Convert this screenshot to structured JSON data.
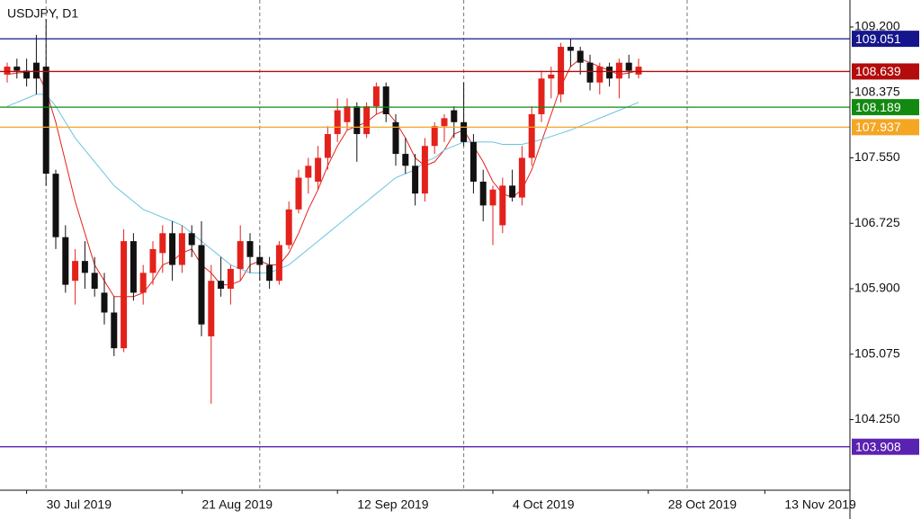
{
  "chart_data": {
    "type": "candlestick",
    "title": "USDJPY, D1",
    "categories": [
      null,
      null,
      "30 Jul 2019",
      null,
      null,
      null,
      null,
      null,
      null,
      null,
      null,
      null,
      null,
      null,
      null,
      null,
      null,
      null,
      "21 Aug 2019",
      null,
      null,
      null,
      null,
      null,
      null,
      null,
      null,
      null,
      null,
      null,
      null,
      null,
      null,
      null,
      "12 Sep 2019",
      null,
      null,
      null,
      null,
      null,
      null,
      null,
      null,
      null,
      null,
      null,
      null,
      null,
      null,
      null,
      "4 Oct 2019",
      null,
      null,
      null,
      null,
      null,
      null,
      null,
      null,
      null,
      null,
      null,
      null,
      null,
      null,
      null,
      "28 Oct 2019",
      null,
      null,
      null,
      null,
      null,
      null,
      null,
      null,
      null,
      null,
      null,
      "13 Nov 2019"
    ],
    "open": [
      108.6,
      108.7,
      108.65,
      108.75,
      108.7,
      107.35,
      106.55,
      106.0,
      106.25,
      106.1,
      105.85,
      105.6,
      105.15,
      106.5,
      105.85,
      106.1,
      106.35,
      106.6,
      106.2,
      106.6,
      106.45,
      105.3,
      106.0,
      105.9,
      106.15,
      106.5,
      106.3,
      106.2,
      106.0,
      106.45,
      106.9,
      107.3,
      107.25,
      107.55,
      107.85,
      108.0,
      108.2,
      107.85,
      108.2,
      108.45,
      108.0,
      107.6,
      107.45,
      107.1,
      107.7,
      107.95,
      108.15,
      108.0,
      107.75,
      107.25,
      106.95,
      106.7,
      107.2,
      107.05,
      107.55,
      108.1,
      108.55,
      108.35,
      108.95,
      108.9,
      108.75,
      108.5,
      108.7,
      108.55,
      108.75,
      108.6,
      null,
      null,
      null,
      null,
      null,
      null,
      null,
      null,
      null,
      null,
      null,
      null,
      null
    ],
    "high": [
      108.75,
      108.8,
      108.8,
      109.1,
      109.3,
      107.4,
      106.7,
      106.4,
      106.5,
      106.3,
      106.1,
      105.8,
      106.65,
      106.6,
      106.2,
      106.5,
      106.7,
      106.75,
      106.7,
      106.7,
      106.75,
      106.2,
      106.3,
      106.2,
      106.7,
      106.6,
      106.45,
      106.3,
      106.5,
      107.0,
      107.4,
      107.55,
      107.7,
      107.95,
      108.3,
      108.3,
      108.25,
      108.25,
      108.5,
      108.5,
      108.1,
      107.8,
      107.6,
      107.8,
      108.0,
      108.1,
      108.2,
      108.5,
      107.85,
      107.4,
      107.2,
      107.3,
      107.4,
      107.7,
      108.2,
      108.65,
      108.7,
      109.0,
      109.05,
      108.95,
      108.85,
      108.75,
      108.75,
      108.8,
      108.85,
      108.8,
      null,
      null,
      null,
      null,
      null,
      null,
      null,
      null,
      null,
      null,
      null,
      null,
      null
    ],
    "low": [
      108.5,
      108.55,
      108.45,
      108.35,
      107.2,
      106.4,
      105.85,
      105.7,
      105.9,
      105.8,
      105.45,
      105.05,
      105.1,
      105.75,
      105.7,
      105.95,
      106.1,
      106.0,
      106.1,
      106.3,
      105.3,
      104.45,
      105.8,
      105.7,
      106.0,
      106.1,
      106.0,
      105.9,
      105.95,
      106.4,
      106.85,
      107.1,
      107.15,
      107.4,
      107.75,
      107.9,
      107.5,
      107.8,
      108.1,
      108.0,
      107.45,
      107.35,
      106.95,
      107.0,
      107.6,
      107.75,
      107.8,
      107.7,
      107.1,
      106.75,
      106.45,
      106.6,
      107.0,
      106.95,
      107.45,
      108.0,
      108.3,
      108.25,
      108.7,
      108.6,
      108.4,
      108.35,
      108.45,
      108.3,
      108.55,
      108.55,
      null,
      null,
      null,
      null,
      null,
      null,
      null,
      null,
      null,
      null,
      null,
      null,
      null
    ],
    "close": [
      108.7,
      108.65,
      108.55,
      108.55,
      107.35,
      106.55,
      105.95,
      106.25,
      106.1,
      105.9,
      105.6,
      105.15,
      106.5,
      105.85,
      106.1,
      106.4,
      106.6,
      106.2,
      106.6,
      106.45,
      105.45,
      106.0,
      105.9,
      106.15,
      106.5,
      106.3,
      106.2,
      106.0,
      106.45,
      106.9,
      107.3,
      107.45,
      107.55,
      107.85,
      108.15,
      108.2,
      107.85,
      108.2,
      108.45,
      108.1,
      107.6,
      107.45,
      107.1,
      107.7,
      107.95,
      108.05,
      108.0,
      107.75,
      107.25,
      106.95,
      107.15,
      107.2,
      107.05,
      107.55,
      108.1,
      108.55,
      108.6,
      108.95,
      108.9,
      108.75,
      108.5,
      108.7,
      108.55,
      108.75,
      108.65,
      108.7,
      null,
      null,
      null,
      null,
      null,
      null,
      null,
      null,
      null,
      null,
      null,
      null,
      null
    ],
    "up_color": "#e3221c",
    "down_color": "#111111",
    "lines": [
      {
        "color": "#e3221c",
        "values": [
          108.6,
          108.62,
          108.63,
          108.65,
          108.4,
          108.0,
          107.5,
          107.0,
          106.6,
          106.2,
          106.0,
          105.8,
          105.8,
          105.8,
          105.85,
          106.0,
          106.2,
          106.25,
          106.35,
          106.4,
          106.2,
          106.1,
          105.95,
          105.95,
          106.0,
          106.2,
          106.25,
          106.2,
          106.2,
          106.35,
          106.6,
          106.9,
          107.15,
          107.45,
          107.7,
          107.9,
          107.95,
          108.0,
          108.1,
          108.15,
          108.0,
          107.8,
          107.55,
          107.45,
          107.5,
          107.65,
          107.85,
          107.9,
          107.7,
          107.5,
          107.25,
          107.1,
          107.05,
          107.15,
          107.4,
          107.75,
          108.1,
          108.45,
          108.7,
          108.8,
          108.75,
          108.7,
          108.65,
          108.6,
          108.62,
          108.65,
          null,
          null,
          null,
          null,
          null,
          null,
          null,
          null,
          null,
          null,
          null,
          null,
          null
        ]
      },
      {
        "color": "#6cc3e0",
        "values": [
          108.2,
          108.25,
          108.3,
          108.35,
          108.35,
          108.2,
          108.0,
          107.8,
          107.65,
          107.5,
          107.35,
          107.2,
          107.1,
          107.0,
          106.9,
          106.85,
          106.8,
          106.75,
          106.7,
          106.6,
          106.5,
          106.4,
          106.3,
          106.2,
          106.15,
          106.1,
          106.1,
          106.1,
          106.15,
          106.2,
          106.3,
          106.4,
          106.5,
          106.6,
          106.7,
          106.8,
          106.9,
          107.0,
          107.1,
          107.2,
          107.3,
          107.35,
          107.4,
          107.5,
          107.55,
          107.65,
          107.7,
          107.75,
          107.75,
          107.75,
          107.75,
          107.72,
          107.72,
          107.72,
          107.75,
          107.78,
          107.82,
          107.86,
          107.9,
          107.95,
          108.0,
          108.05,
          108.1,
          108.15,
          108.2,
          108.25,
          null,
          null,
          null,
          null,
          null,
          null,
          null,
          null,
          null,
          null,
          null,
          null,
          null
        ]
      }
    ],
    "levels": [
      {
        "value": 109.051,
        "color": "#16168c"
      },
      {
        "value": 108.639,
        "color": "#b40c0c"
      },
      {
        "value": 108.189,
        "color": "#128a12"
      },
      {
        "value": 107.937,
        "color": "#f5a623"
      },
      {
        "value": 103.908,
        "color": "#5a22b0"
      }
    ],
    "ylim": [
      103.36,
      109.54
    ],
    "yticks": [
      {
        "value": 109.2,
        "label": "109.200"
      },
      108.375,
      {
        "value": 107.55,
        "label": "107.550"
      },
      106.725,
      {
        "value": 105.9,
        "label": "105.900"
      },
      105.075,
      {
        "value": 104.25,
        "label": "104.250"
      }
    ]
  }
}
